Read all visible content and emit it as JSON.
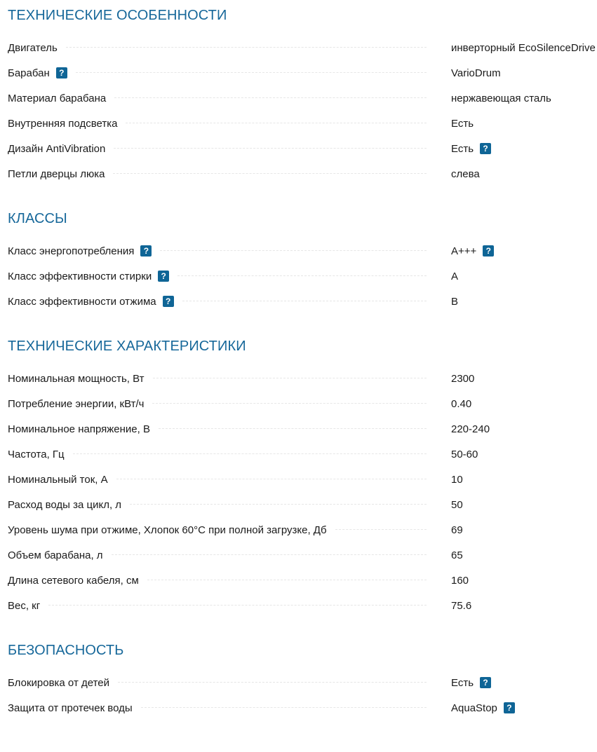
{
  "sections": [
    {
      "title": "ТЕХНИЧЕСКИЕ ОСОБЕННОСТИ",
      "rows": [
        {
          "label": "Двигатель",
          "value": "инверторный EcoSilenceDrive",
          "label_help": false,
          "value_help": false
        },
        {
          "label": "Барабан",
          "value": "VarioDrum",
          "label_help": true,
          "value_help": false
        },
        {
          "label": "Материал барабана",
          "value": "нержавеющая сталь",
          "label_help": false,
          "value_help": false
        },
        {
          "label": "Внутренняя подсветка",
          "value": "Есть",
          "label_help": false,
          "value_help": false
        },
        {
          "label": "Дизайн AntiVibration",
          "value": "Есть",
          "label_help": false,
          "value_help": true
        },
        {
          "label": "Петли дверцы люка",
          "value": "слева",
          "label_help": false,
          "value_help": false
        }
      ]
    },
    {
      "title": "КЛАССЫ",
      "rows": [
        {
          "label": "Класс энергопотребления",
          "value": "A+++",
          "label_help": true,
          "value_help": true
        },
        {
          "label": "Класс эффективности стирки",
          "value": "A",
          "label_help": true,
          "value_help": false
        },
        {
          "label": "Класс эффективности отжима",
          "value": "B",
          "label_help": true,
          "value_help": false
        }
      ]
    },
    {
      "title": "ТЕХНИЧЕСКИЕ ХАРАКТЕРИСТИКИ",
      "rows": [
        {
          "label": "Номинальная мощность, Вт",
          "value": "2300"
        },
        {
          "label": "Потребление энергии, кВт/ч",
          "value": "0.40"
        },
        {
          "label": "Номинальное напряжение, В",
          "value": "220-240"
        },
        {
          "label": "Частота, Гц",
          "value": "50-60"
        },
        {
          "label": "Номинальный ток, А",
          "value": "10"
        },
        {
          "label": "Расход воды за цикл, л",
          "value": "50"
        },
        {
          "label": "Уровень шума при отжиме, Хлопок 60°C при полной загрузке, Дб",
          "value": "69"
        },
        {
          "label": "Объем барабана, л",
          "value": "65"
        },
        {
          "label": "Длина сетевого кабеля, см",
          "value": "160"
        },
        {
          "label": "Вес, кг",
          "value": "75.6"
        }
      ]
    },
    {
      "title": "БЕЗОПАСНОСТЬ",
      "rows": [
        {
          "label": "Блокировка от детей",
          "value": "Есть",
          "label_help": false,
          "value_help": true
        },
        {
          "label": "Защита от протечек воды",
          "value": "AquaStop",
          "label_help": false,
          "value_help": true
        }
      ]
    }
  ],
  "help_label": "?",
  "colors": {
    "heading": "#17689a",
    "help_badge": "#0f6596"
  }
}
